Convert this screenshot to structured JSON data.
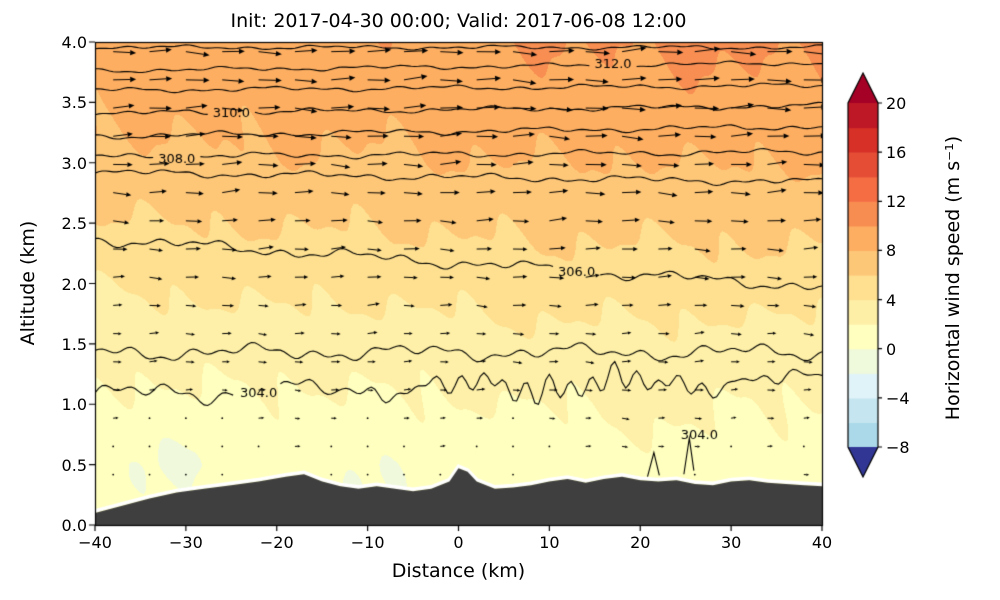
{
  "figure": {
    "title": "Init: 2017-04-30 00:00; Valid: 2017-06-08 12:00",
    "xlabel": "Distance (km)",
    "ylabel": "Altitude (km)",
    "colorbar_label": "Horizontal wind speed (m s⁻¹)"
  },
  "chart_data": {
    "type": "heatmap",
    "title": "Init: 2017-04-30 00:00; Valid: 2017-06-08 12:00",
    "xlabel": "Distance (km)",
    "ylabel": "Altitude (km)",
    "xlim": [
      -40,
      40
    ],
    "ylim": [
      0.0,
      4.0
    ],
    "x_ticks": {
      "values": [
        -40,
        -30,
        -20,
        -10,
        0,
        10,
        20,
        30,
        40
      ],
      "labels": [
        "−40",
        "−30",
        "−20",
        "−10",
        "0",
        "10",
        "20",
        "30",
        "40"
      ]
    },
    "y_ticks": {
      "values": [
        0,
        0.5,
        1,
        1.5,
        2,
        2.5,
        3,
        3.5,
        4
      ],
      "labels": [
        "0.0",
        "0.5",
        "1.0",
        "1.5",
        "2.0",
        "2.5",
        "3.0",
        "3.5",
        "4.0"
      ]
    },
    "wind_speed_grid": {
      "units": "m/s",
      "x_km": [
        -40,
        -30,
        -20,
        -10,
        0,
        10,
        20,
        30,
        40
      ],
      "z_km": [
        0,
        0.5,
        1,
        1.5,
        2,
        2.5,
        3,
        3.5,
        4
      ],
      "speed_ms": [
        [
          0.5,
          0.6,
          0.5,
          0.4,
          0.5,
          0.6,
          0.5,
          0.5,
          0.6
        ],
        [
          0.8,
          1.0,
          0.9,
          0.8,
          1.0,
          1.1,
          1.0,
          0.9,
          1.0
        ],
        [
          1.5,
          1.8,
          1.6,
          1.7,
          2.0,
          2.1,
          1.9,
          1.8,
          2.0
        ],
        [
          2.6,
          2.8,
          3.0,
          2.9,
          3.2,
          3.4,
          3.3,
          3.1,
          3.2
        ],
        [
          4.2,
          4.4,
          4.6,
          4.5,
          4.8,
          5.0,
          4.9,
          5.1,
          5.0
        ],
        [
          5.8,
          6.0,
          6.2,
          6.1,
          6.3,
          6.5,
          6.4,
          6.6,
          6.5
        ],
        [
          7.4,
          7.6,
          7.8,
          7.7,
          7.9,
          8.0,
          7.9,
          8.1,
          8.0
        ],
        [
          8.4,
          8.6,
          8.7,
          8.8,
          9.0,
          9.2,
          9.3,
          9.4,
          9.4
        ],
        [
          9.0,
          9.2,
          9.4,
          9.6,
          9.8,
          10.1,
          10.3,
          10.4,
          10.3
        ]
      ]
    },
    "theta_contours": {
      "units": "K",
      "interval": 1.0,
      "labeled_levels": [
        304.0,
        306.0,
        308.0,
        310.0,
        312.0
      ],
      "lines": [
        {
          "level": 304,
          "label": "304.0",
          "base_altitude_km": 1.14,
          "tilt": 0.0015,
          "wiggle": 0.1,
          "label_x_km": -22
        },
        {
          "level": 305,
          "label": "",
          "base_altitude_km": 1.43,
          "tilt": 0.0,
          "wiggle": 0.075,
          "label_x_km": null
        },
        {
          "level": 306,
          "label": "306.0",
          "base_altitude_km": 2.17,
          "tilt": -0.005,
          "wiggle": 0.055,
          "label_x_km": 13
        },
        {
          "level": 307,
          "label": "",
          "base_altitude_km": 2.88,
          "tilt": -0.001,
          "wiggle": 0.035,
          "label_x_km": null
        },
        {
          "level": 308,
          "label": "308.0",
          "base_altitude_km": 3.07,
          "tilt": 0.0005,
          "wiggle": 0.03,
          "label_x_km": -31
        },
        {
          "level": 309,
          "label": "",
          "base_altitude_km": 3.26,
          "tilt": 0.001,
          "wiggle": 0.028,
          "label_x_km": null
        },
        {
          "level": 310,
          "label": "310.0",
          "base_altitude_km": 3.44,
          "tilt": 0.0008,
          "wiggle": 0.026,
          "label_x_km": -25
        },
        {
          "level": 311,
          "label": "",
          "base_altitude_km": 3.62,
          "tilt": 0.0005,
          "wiggle": 0.024,
          "label_x_km": null
        },
        {
          "level": 312,
          "label": "312.0",
          "base_altitude_km": 3.795,
          "tilt": 0.0008,
          "wiggle": 0.022,
          "label_x_km": 17
        },
        {
          "level": 313,
          "label": "",
          "base_altitude_km": 3.955,
          "tilt": 0.0,
          "wiggle": 0.02,
          "label_x_km": null
        }
      ],
      "secondary_304": {
        "label": "304.0",
        "label_x_km": 26.5,
        "label_z_km": 0.74,
        "spikes": [
          {
            "x": [
              20.8,
              21.5,
              22.1
            ],
            "z": [
              0.4,
              0.6,
              0.41
            ]
          },
          {
            "x": [
              24.8,
              25.4,
              25.9
            ],
            "z": [
              0.42,
              0.72,
              0.45
            ]
          }
        ]
      }
    },
    "colorbar": {
      "label": "Horizontal wind speed (m s⁻¹)",
      "tick_values": [
        20,
        16,
        12,
        8,
        4,
        0,
        -4,
        -8
      ],
      "tick_labels": [
        "20",
        "16",
        "12",
        "8",
        "4",
        "0",
        "−4",
        "−8"
      ],
      "level_min": -8,
      "level_max": 20,
      "level_step": 2,
      "extend": "both",
      "colormap": "RdYlBu_r",
      "colormap_anchors": [
        "#313695",
        "#4575b4",
        "#74add1",
        "#abd9e9",
        "#e0f3f8",
        "#ffffbf",
        "#fee090",
        "#fdae61",
        "#f46d43",
        "#d73027",
        "#a50026"
      ],
      "color_value_range": [
        -19,
        21
      ]
    },
    "terrain": {
      "color": "#3f3f3f",
      "x_km": [
        -40,
        -37,
        -34,
        -31,
        -28,
        -25,
        -22,
        -19,
        -17,
        -15,
        -13,
        -11,
        -9,
        -7,
        -5,
        -3,
        -1,
        0,
        1,
        2,
        4,
        6,
        8,
        10,
        12,
        14,
        16,
        18,
        20,
        22,
        24,
        26,
        28,
        30,
        32,
        34,
        36,
        38,
        40
      ],
      "height_km": [
        0.1,
        0.16,
        0.22,
        0.27,
        0.3,
        0.33,
        0.36,
        0.4,
        0.42,
        0.36,
        0.32,
        0.3,
        0.32,
        0.3,
        0.28,
        0.3,
        0.36,
        0.47,
        0.44,
        0.36,
        0.3,
        0.31,
        0.33,
        0.36,
        0.38,
        0.35,
        0.38,
        0.4,
        0.37,
        0.36,
        0.37,
        0.34,
        0.33,
        0.36,
        0.37,
        0.35,
        0.34,
        0.33,
        0.32
      ]
    },
    "wind": {
      "representation": "quiver arrows",
      "direction": "arrows point toward +x (left to right); length proportional to speed",
      "max_speed_ms": 10.4
    }
  }
}
